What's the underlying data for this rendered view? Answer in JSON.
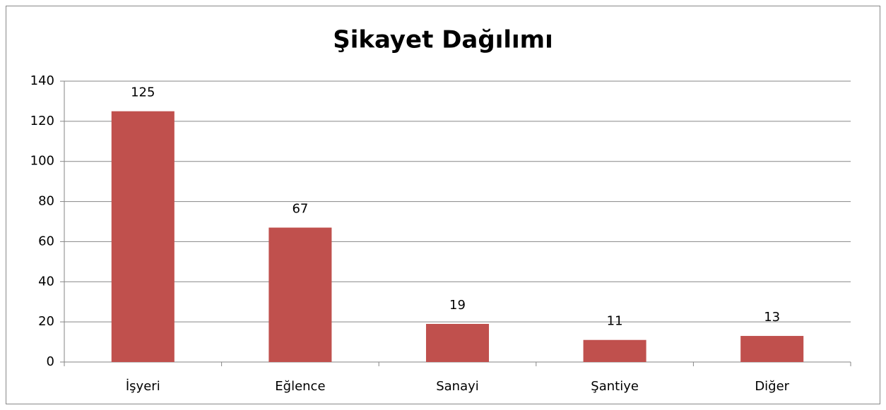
{
  "chart_data": {
    "type": "bar",
    "title": "Şikayet Dağılımı",
    "categories": [
      "İşyeri",
      "Eğlence",
      "Sanayi",
      "Şantiye",
      "Diğer"
    ],
    "values": [
      125,
      67,
      19,
      11,
      13
    ],
    "color": "#c0504d",
    "ylim": [
      0,
      140
    ],
    "yticks": [
      0,
      20,
      40,
      60,
      80,
      100,
      120,
      140
    ],
    "grid": true,
    "data_labels": true
  }
}
